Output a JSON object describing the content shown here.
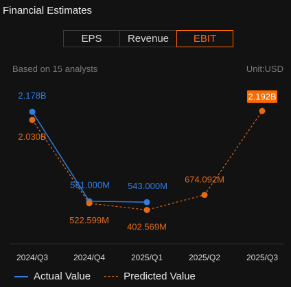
{
  "header": {
    "title": "Financial Estimates"
  },
  "tabs": [
    {
      "label": "EPS",
      "active": false
    },
    {
      "label": "Revenue",
      "active": false
    },
    {
      "label": "EBIT",
      "active": true
    }
  ],
  "meta": {
    "analysts": "Based on 15 analysts",
    "unit": "Unit:USD"
  },
  "colors": {
    "actual": "#2f7de1",
    "predicted": "#e56a12",
    "accent": "#ff6a00"
  },
  "chart_data": {
    "type": "line",
    "categories": [
      "2024/Q3",
      "2024/Q4",
      "2025/Q1",
      "2025/Q2",
      "2025/Q3"
    ],
    "series": [
      {
        "name": "Actual Value",
        "values": [
          2178000000,
          561000000,
          543000000,
          null,
          null
        ],
        "labels": [
          "2.178B",
          "561.000M",
          "543.000M",
          "",
          ""
        ]
      },
      {
        "name": "Predicted Value",
        "values": [
          2030000000,
          522599000,
          402569000,
          674092000,
          2192000000
        ],
        "labels": [
          "2.030B",
          "522.599M",
          "402.569M",
          "674.092M",
          "2.192B"
        ]
      }
    ],
    "highlighted_label": "2.192B",
    "grid": false,
    "legend_position": "bottom-left"
  },
  "legend": {
    "actual": "Actual Value",
    "predicted": "Predicted Value"
  }
}
